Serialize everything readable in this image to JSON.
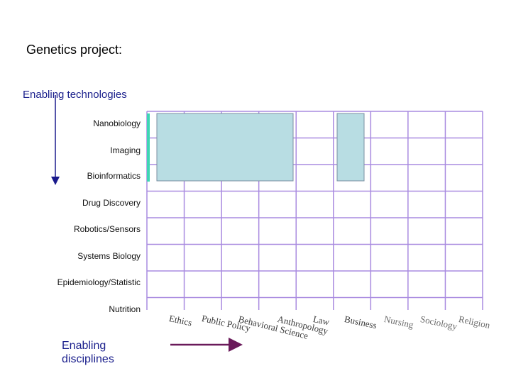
{
  "title": "Genetics project:",
  "technologies_heading": "Enabling technologies",
  "disciplines_heading_line1": "Enabling",
  "disciplines_heading_line2": "disciplines",
  "technologies": [
    "Nanobiology",
    "Imaging",
    "Bioinformatics",
    "Drug Discovery",
    "Robotics/Sensors",
    "Systems Biology",
    "Epidemiology/Statistic",
    "Nutrition"
  ],
  "disciplines": [
    "Ethics",
    "Public Policy",
    "Behavioral Science",
    "Anthropology",
    "Law",
    "Business",
    "Nursing",
    "Sociology",
    "Religion"
  ],
  "colors": {
    "grid": "#a98be0",
    "cell_fill": "#b8dde3",
    "cell_stroke": "#7a8fa0",
    "accent_bar": "#3ed6b4",
    "arrow": "#1a1a8c",
    "discipline_arrow": "#6a1a5a"
  }
}
